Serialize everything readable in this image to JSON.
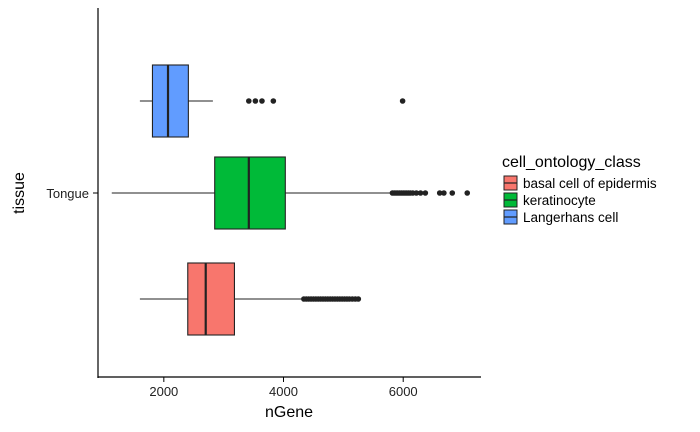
{
  "chart_data": {
    "type": "boxplot",
    "orientation": "horizontal",
    "title": "",
    "xlabel": "nGene",
    "ylabel": "tissue",
    "xlim": [
      900,
      7300
    ],
    "xticks": [
      2000,
      4000,
      6000
    ],
    "xtick_labels": [
      "2000",
      "4000",
      "6000"
    ],
    "categories": [
      "Tongue"
    ],
    "grid": false,
    "legend": {
      "title": "cell_ontology_class",
      "placement": "right",
      "entries": [
        {
          "label": "basal cell of epidermis",
          "color": "#F8766D"
        },
        {
          "label": "keratinocyte",
          "color": "#00BA38"
        },
        {
          "label": "Langerhans cell",
          "color": "#619CFF"
        }
      ]
    },
    "series": [
      {
        "name": "basal cell of epidermis",
        "category": "Tongue",
        "color": "#F8766D",
        "whisker_low": 1600,
        "q1": 2400,
        "median": 2700,
        "q3": 3180,
        "whisker_high": 4320,
        "outliers": [
          4340,
          4380,
          4420,
          4460,
          4500,
          4540,
          4580,
          4620,
          4660,
          4700,
          4740,
          4780,
          4820,
          4860,
          4900,
          4940,
          4980,
          5020,
          5060,
          5100,
          5150,
          5200,
          5250
        ]
      },
      {
        "name": "keratinocyte",
        "category": "Tongue",
        "color": "#00BA38",
        "whisker_low": 1130,
        "q1": 2850,
        "median": 3420,
        "q3": 4030,
        "whisker_high": 5800,
        "outliers": [
          5820,
          5850,
          5880,
          5910,
          5940,
          5970,
          6000,
          6030,
          6060,
          6090,
          6120,
          6160,
          6220,
          6290,
          6370,
          6610,
          6680,
          6820,
          7070
        ]
      },
      {
        "name": "Langerhans cell",
        "category": "Tongue",
        "color": "#619CFF",
        "whisker_low": 1600,
        "q1": 1810,
        "median": 2070,
        "q3": 2410,
        "whisker_high": 2820,
        "outliers": [
          3420,
          3530,
          3640,
          3830,
          5990
        ]
      }
    ]
  }
}
